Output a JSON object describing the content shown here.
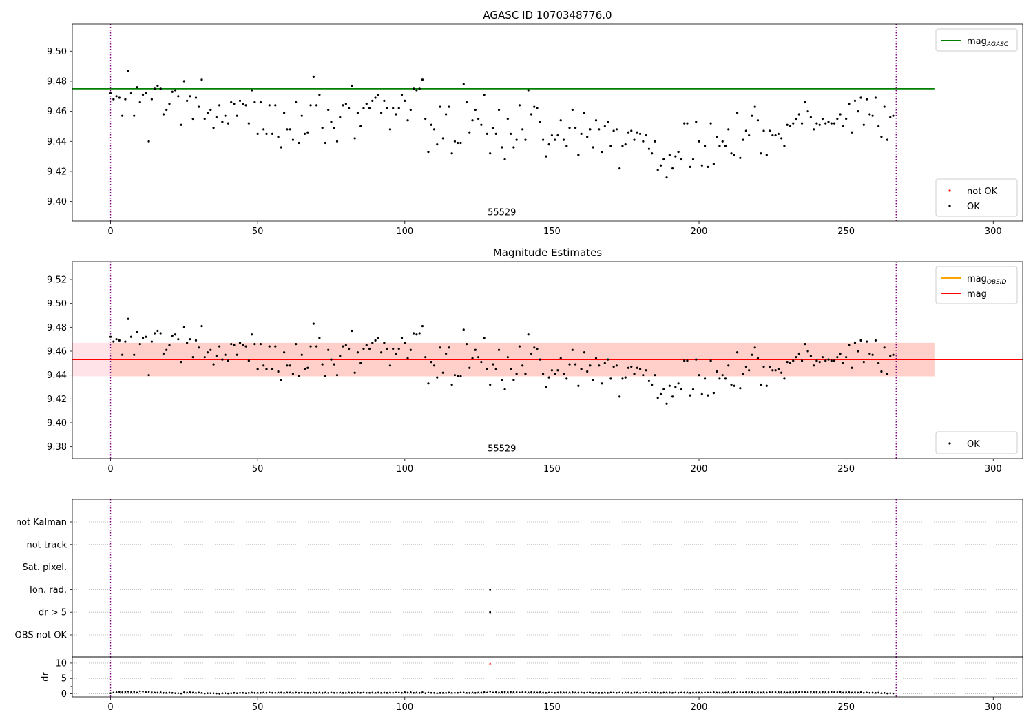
{
  "chart_data": [
    {
      "type": "scatter",
      "title": "AGASC ID 1070348776.0",
      "xlim": [
        -13,
        310
      ],
      "ylim": [
        9.387,
        9.518
      ],
      "xticks": [
        0,
        50,
        100,
        150,
        200,
        250,
        300
      ],
      "yticks": [
        9.4,
        9.42,
        9.44,
        9.46,
        9.48,
        9.5
      ],
      "ytick_decimals": 2,
      "grid": false,
      "hlines": [
        {
          "name": "mag_AGASC",
          "y": 9.475,
          "x": [
            -13,
            280
          ],
          "color": "#008000"
        }
      ],
      "vlines": [
        {
          "x": 0,
          "color": "#800080",
          "style": "dotted"
        },
        {
          "x": 267,
          "color": "#800080",
          "style": "dotted"
        }
      ],
      "annotations": [
        {
          "text": "55529",
          "x": 133,
          "y": 9.391
        }
      ],
      "legends": [
        {
          "placement": "top-right",
          "entries": [
            {
              "label": "mag",
              "sub": "AGASC",
              "kind": "line",
              "color": "#008000"
            }
          ]
        },
        {
          "placement": "bottom-right",
          "entries": [
            {
              "label": "not OK",
              "kind": "point",
              "color": "#ff0000"
            },
            {
              "label": "OK",
              "kind": "point",
              "color": "#000000"
            }
          ]
        }
      ],
      "series": [
        {
          "name": "OK",
          "color": "#000000",
          "values": "mag_values"
        }
      ]
    },
    {
      "type": "scatter",
      "title": "Magnitude Estimates",
      "xlim": [
        -13,
        310
      ],
      "ylim": [
        9.37,
        9.535
      ],
      "xticks": [
        0,
        50,
        100,
        150,
        200,
        250,
        300
      ],
      "yticks": [
        9.38,
        9.4,
        9.42,
        9.44,
        9.46,
        9.48,
        9.5,
        9.52
      ],
      "ytick_decimals": 2,
      "grid": false,
      "hlines": [
        {
          "name": "mag",
          "y": 9.453,
          "x": [
            -13,
            310
          ],
          "color": "#ff0000"
        }
      ],
      "bands": [
        {
          "name": "mag_OBSID",
          "y": [
            9.439,
            9.467
          ],
          "x": [
            0,
            280
          ],
          "color": "#ffb080",
          "opacity": 0.45
        },
        {
          "name": "mag",
          "y": [
            9.439,
            9.467
          ],
          "x": [
            -13,
            280
          ],
          "color": "#ffc0cb",
          "opacity": 0.45
        }
      ],
      "vlines": [
        {
          "x": 0,
          "color": "#800080",
          "style": "dotted"
        },
        {
          "x": 267,
          "color": "#800080",
          "style": "dotted"
        }
      ],
      "annotations": [
        {
          "text": "55529",
          "x": 133,
          "y": 9.376
        }
      ],
      "legends": [
        {
          "placement": "top-right",
          "entries": [
            {
              "label": "mag",
              "sub": "OBSID",
              "kind": "line",
              "color": "#ffa500"
            },
            {
              "label": "mag",
              "kind": "line",
              "color": "#ff0000"
            }
          ]
        },
        {
          "placement": "bottom-right",
          "entries": [
            {
              "label": "OK",
              "kind": "point",
              "color": "#000000"
            }
          ]
        }
      ],
      "series": [
        {
          "name": "OK",
          "color": "#000000",
          "values": "mag_values"
        }
      ]
    },
    {
      "type": "scatter",
      "xlim": [
        -13,
        310
      ],
      "categories": [
        "OBS not OK",
        "dr > 5",
        "Ion. rad.",
        "Sat. pixel.",
        "not track",
        "not Kalman"
      ],
      "flag_points": [
        {
          "x": 129,
          "category": "Ion. rad."
        },
        {
          "x": 129,
          "category": "dr > 5"
        }
      ],
      "grid": true,
      "vlines": [
        {
          "x": 0,
          "color": "#800080",
          "style": "dotted"
        },
        {
          "x": 267,
          "color": "#800080",
          "style": "dotted"
        }
      ]
    },
    {
      "type": "scatter",
      "ylabel": "dr",
      "xlim": [
        -13,
        310
      ],
      "ylim": [
        -1,
        12
      ],
      "xticks": [
        0,
        50,
        100,
        150,
        200,
        250,
        300
      ],
      "yticks": [
        0,
        5,
        10
      ],
      "minor_yticks": [
        2.5,
        7.5
      ],
      "grid": true,
      "highlight": {
        "x": 129,
        "y": 9.8,
        "color": "#ff0000"
      },
      "vlines": [
        {
          "x": 0,
          "color": "#800080",
          "style": "dotted"
        },
        {
          "x": 267,
          "color": "#800080",
          "style": "dotted"
        }
      ],
      "series": [
        {
          "name": "dr",
          "color": "#000000",
          "values": "dr_values"
        }
      ]
    }
  ],
  "mag_values": [
    9.472,
    9.468,
    9.47,
    9.469,
    9.457,
    9.468,
    9.487,
    9.472,
    9.457,
    9.476,
    9.466,
    9.471,
    9.472,
    9.44,
    9.468,
    9.475,
    9.477,
    9.475,
    9.458,
    9.461,
    9.465,
    9.473,
    9.474,
    9.47,
    9.451,
    9.48,
    9.467,
    9.47,
    9.455,
    9.469,
    9.463,
    9.481,
    9.455,
    9.459,
    9.461,
    9.449,
    9.456,
    9.464,
    9.453,
    9.457,
    9.452,
    9.466,
    9.465,
    9.457,
    9.467,
    9.465,
    9.464,
    9.452,
    9.474,
    9.466,
    9.445,
    9.466,
    9.448,
    9.445,
    9.464,
    9.445,
    9.464,
    9.443,
    9.436,
    9.459,
    9.448,
    9.448,
    9.441,
    9.466,
    9.439,
    9.457,
    9.445,
    9.446,
    9.464,
    9.483,
    9.464,
    9.471,
    9.449,
    9.439,
    9.461,
    9.453,
    9.449,
    9.44,
    9.456,
    9.464,
    9.465,
    9.462,
    9.477,
    9.442,
    9.459,
    9.45,
    9.462,
    9.465,
    9.462,
    9.467,
    9.469,
    9.471,
    9.459,
    9.467,
    9.462,
    9.448,
    9.462,
    9.458,
    9.462,
    9.471,
    9.467,
    9.454,
    9.461,
    9.475,
    9.474,
    9.475,
    9.481,
    9.455,
    9.433,
    9.451,
    9.448,
    9.438,
    9.463,
    9.442,
    9.458,
    9.463,
    9.432,
    9.44,
    9.439,
    9.439,
    9.478,
    9.466,
    9.446,
    9.454,
    9.461,
    9.455,
    9.451,
    9.471,
    9.445,
    9.432,
    9.449,
    9.445,
    9.461,
    9.436,
    9.428,
    9.455,
    9.445,
    9.436,
    9.441,
    9.464,
    9.448,
    9.441,
    9.474,
    9.458,
    9.463,
    9.462,
    9.453,
    9.441,
    9.43,
    9.438,
    9.444,
    9.441,
    9.444,
    9.454,
    9.441,
    9.437,
    9.449,
    9.461,
    9.449,
    9.431,
    9.445,
    9.459,
    9.443,
    9.448,
    9.436,
    9.454,
    9.448,
    9.433,
    9.45,
    9.453,
    9.437,
    9.447,
    9.448,
    9.422,
    9.437,
    9.438,
    9.446,
    9.447,
    9.441,
    9.446,
    9.445,
    9.44,
    9.444,
    9.435,
    9.432,
    9.44,
    9.421,
    9.424,
    9.428,
    9.416,
    9.431,
    9.422,
    9.43,
    9.433,
    9.428,
    9.452,
    9.452,
    9.423,
    9.428,
    9.453,
    9.44,
    9.424,
    9.437,
    9.423,
    9.452,
    9.425,
    9.443,
    9.437,
    9.44,
    9.437,
    9.448,
    9.432,
    9.431,
    9.459,
    9.429,
    9.441,
    9.447,
    9.444,
    9.457,
    9.463,
    9.454,
    9.432,
    9.447,
    9.431,
    9.447,
    9.444,
    9.444,
    9.445,
    9.442,
    9.437,
    9.451,
    9.45,
    9.452,
    9.455,
    9.458,
    9.452,
    9.466,
    9.46,
    9.456,
    9.448,
    9.452,
    9.451,
    9.455,
    9.452,
    9.453,
    9.452,
    9.452,
    9.455,
    9.458,
    9.45,
    9.455,
    9.465,
    9.446,
    9.467,
    9.46,
    9.469,
    9.451,
    9.468,
    9.458,
    9.457,
    9.469,
    9.45,
    9.443,
    9.463,
    9.441,
    9.456,
    9.457
  ],
  "dr_values": [
    0.2,
    0.4,
    0.5,
    0.6,
    0.5,
    0.6,
    0.7,
    0.5,
    0.6,
    0.4,
    0.8,
    0.7,
    0.5,
    0.6,
    0.5,
    0.4,
    0.4,
    0.5,
    0.3,
    0.3,
    0.4,
    0.3,
    0.2,
    0.2,
    0.1,
    0.5,
    0.4,
    0.5,
    0.4,
    0.3,
    0.4,
    0.3,
    0.1,
    0.2,
    0.2,
    0.2,
    0.1,
    0.0,
    0.2,
    0.2,
    0.1,
    0.2,
    0.3,
    0.2,
    0.3,
    0.3,
    0.2,
    0.3,
    0.4,
    0.3,
    0.3,
    0.3,
    0.4,
    0.3,
    0.4,
    0.3,
    0.3,
    0.4,
    0.4,
    0.3,
    0.4,
    0.4,
    0.3,
    0.4,
    0.3,
    0.4,
    0.3,
    0.3,
    0.3,
    0.4,
    0.3,
    0.4,
    0.3,
    0.4,
    0.3,
    0.4,
    0.3,
    0.3,
    0.4,
    0.3,
    0.3,
    0.4,
    0.3,
    0.4,
    0.4,
    0.3,
    0.4,
    0.3,
    0.3,
    0.4,
    0.3,
    0.4,
    0.3,
    0.4,
    0.3,
    0.4,
    0.3,
    0.4,
    0.4,
    0.3,
    0.5,
    0.4,
    0.5,
    0.3,
    0.4,
    0.3,
    0.5,
    0.2,
    0.4,
    0.3,
    0.3,
    0.2,
    0.3,
    0.3,
    0.3,
    0.4,
    0.3,
    0.3,
    0.3,
    0.4,
    0.4,
    0.3,
    0.3,
    0.4,
    0.3,
    0.4,
    0.4,
    0.5,
    0.4,
    0.7,
    0.4,
    0.5,
    0.4,
    0.5,
    0.6,
    0.5,
    0.6,
    0.5,
    0.5,
    0.4,
    0.5,
    0.5,
    0.4,
    0.5,
    0.5,
    0.4,
    0.5,
    0.4,
    0.3,
    0.4,
    0.4,
    0.3,
    0.4,
    0.5,
    0.4,
    0.4,
    0.4,
    0.5,
    0.4,
    0.4,
    0.4,
    0.3,
    0.4,
    0.4,
    0.3,
    0.4,
    0.3,
    0.3,
    0.4,
    0.3,
    0.4,
    0.4,
    0.3,
    0.4,
    0.3,
    0.4,
    0.4,
    0.3,
    0.4,
    0.4,
    0.3,
    0.4,
    0.4,
    0.3,
    0.4,
    0.4,
    0.4,
    0.3,
    0.4,
    0.4,
    0.4,
    0.3,
    0.4,
    0.3,
    0.4,
    0.4,
    0.4,
    0.3,
    0.4,
    0.4,
    0.4,
    0.4,
    0.4,
    0.4,
    0.4,
    0.5,
    0.4,
    0.4,
    0.4,
    0.4,
    0.5,
    0.4,
    0.5,
    0.4,
    0.5,
    0.4,
    0.5,
    0.5,
    0.5,
    0.4,
    0.5,
    0.4,
    0.5,
    0.4,
    0.5,
    0.5,
    0.5,
    0.5,
    0.5,
    0.5,
    0.4,
    0.5,
    0.5,
    0.5,
    0.5,
    0.6,
    0.5,
    0.5,
    0.6,
    0.5,
    0.6,
    0.5,
    0.6,
    0.5,
    0.5,
    0.6,
    0.5,
    0.5,
    0.6,
    0.4,
    0.5,
    0.5,
    0.4,
    0.5,
    0.4,
    0.5,
    0.3,
    0.4,
    0.3,
    0.4,
    0.3,
    0.4,
    0.2,
    0.3,
    0.1,
    0.2,
    0.1
  ]
}
